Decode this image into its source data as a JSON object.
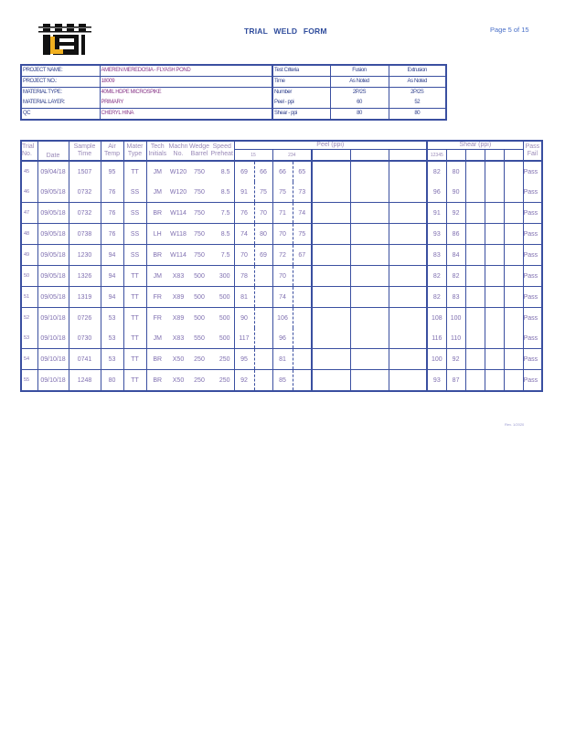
{
  "header": {
    "title": "TRIAL   WELD FORM",
    "page": "Page 5 of 15",
    "logo_text": "LS"
  },
  "project": {
    "name_label": "PROJECT NAME:",
    "name": "AMEREN MEREDOSIA - FLYASH POND",
    "no_label": "PROJECT NO.:",
    "no": "18009",
    "type_label": "MATERIAL TYPE:",
    "type": "40MIL HDPE MICROSPIKE",
    "layer_label": "MATERIAL LAYER:",
    "layer": "PRIMARY",
    "qc_label": "QC",
    "qc": "CHERYL HINA"
  },
  "criteria": {
    "header": [
      "Test Criteria",
      "Fusion",
      "Extrusion"
    ],
    "rows": [
      [
        "Time",
        "As Noted",
        "As Noted"
      ],
      [
        "Number",
        "2P/2S",
        "2P/2S"
      ],
      [
        "Peel - ppi",
        "60",
        "52"
      ],
      [
        "Shear - ppi",
        "80",
        "80"
      ]
    ]
  },
  "columns": {
    "trial": [
      "Trial",
      "No."
    ],
    "date": "Date",
    "sample": [
      "Sample",
      "Time"
    ],
    "air": [
      "Air",
      "Temp"
    ],
    "mater": [
      "Mater",
      "Type"
    ],
    "tech": [
      "Tech",
      "Initials"
    ],
    "machn": [
      "Machn",
      "No."
    ],
    "wedge": [
      "Wedge",
      "Barrel"
    ],
    "speed": [
      "Speed",
      "Preheat"
    ],
    "peel": "Peel (ppi)",
    "peel_sub1": "15",
    "peel_sub2": "234",
    "shear": "Shear (ppi)",
    "shear_sub": "12345",
    "pass": [
      "Pass",
      "Fail"
    ]
  },
  "rows": [
    {
      "no": "45",
      "date": "09/04/18",
      "time": "1507",
      "temp": "95",
      "type": "TT",
      "tech": "JM",
      "mach": "W120",
      "wedge": "750",
      "speed": "8.5",
      "peel": [
        "69",
        "66",
        "66",
        "65"
      ],
      "shear": [
        "82",
        "80"
      ],
      "result": "Pass"
    },
    {
      "no": "46",
      "date": "09/05/18",
      "time": "0732",
      "temp": "76",
      "type": "SS",
      "tech": "JM",
      "mach": "W120",
      "wedge": "750",
      "speed": "8.5",
      "peel": [
        "91",
        "75",
        "75",
        "73"
      ],
      "shear": [
        "96",
        "90"
      ],
      "result": "Pass"
    },
    {
      "no": "47",
      "date": "09/05/18",
      "time": "0732",
      "temp": "76",
      "type": "SS",
      "tech": "BR",
      "mach": "W114",
      "wedge": "750",
      "speed": "7.5",
      "peel": [
        "76",
        "70",
        "71",
        "74"
      ],
      "shear": [
        "91",
        "92"
      ],
      "result": "Pass"
    },
    {
      "no": "48",
      "date": "09/05/18",
      "time": "0738",
      "temp": "76",
      "type": "SS",
      "tech": "LH",
      "mach": "W118",
      "wedge": "750",
      "speed": "8.5",
      "peel": [
        "74",
        "80",
        "70",
        "75"
      ],
      "shear": [
        "93",
        "86"
      ],
      "result": "Pass"
    },
    {
      "no": "49",
      "date": "09/05/18",
      "time": "1230",
      "temp": "94",
      "type": "SS",
      "tech": "BR",
      "mach": "W114",
      "wedge": "750",
      "speed": "7.5",
      "peel": [
        "70",
        "69",
        "72",
        "67"
      ],
      "shear": [
        "83",
        "84"
      ],
      "result": "Pass"
    },
    {
      "no": "50",
      "date": "09/05/18",
      "time": "1326",
      "temp": "94",
      "type": "TT",
      "tech": "JM",
      "mach": "X83",
      "wedge": "500",
      "speed": "300",
      "peel": [
        "78",
        "",
        "70",
        ""
      ],
      "shear": [
        "82",
        "82"
      ],
      "result": "Pass"
    },
    {
      "no": "51",
      "date": "09/05/18",
      "time": "1319",
      "temp": "94",
      "type": "TT",
      "tech": "FR",
      "mach": "X89",
      "wedge": "500",
      "speed": "500",
      "peel": [
        "81",
        "",
        "74",
        ""
      ],
      "shear": [
        "82",
        "83"
      ],
      "result": "Pass"
    },
    {
      "no": "52",
      "date": "09/10/18",
      "time": "0726",
      "temp": "53",
      "type": "TT",
      "tech": "FR",
      "mach": "X89",
      "wedge": "500",
      "speed": "500",
      "peel": [
        "90",
        "",
        "106",
        ""
      ],
      "shear": [
        "108",
        "100"
      ],
      "result": "Pass"
    },
    {
      "no": "53",
      "date": "09/10/18",
      "time": "0730",
      "temp": "53",
      "type": "TT",
      "tech": "JM",
      "mach": "X83",
      "wedge": "550",
      "speed": "500",
      "peel": [
        "117",
        "",
        "96",
        ""
      ],
      "shear": [
        "116",
        "110"
      ],
      "result": "Pass"
    },
    {
      "no": "54",
      "date": "09/10/18",
      "time": "0741",
      "temp": "53",
      "type": "TT",
      "tech": "BR",
      "mach": "X50",
      "wedge": "250",
      "speed": "250",
      "peel": [
        "95",
        "",
        "81",
        ""
      ],
      "shear": [
        "100",
        "92"
      ],
      "result": "Pass"
    },
    {
      "no": "55",
      "date": "09/10/18",
      "time": "1248",
      "temp": "80",
      "type": "TT",
      "tech": "BR",
      "mach": "X50",
      "wedge": "250",
      "speed": "250",
      "peel": [
        "92",
        "",
        "85",
        ""
      ],
      "shear": [
        "93",
        "87"
      ],
      "result": "Pass"
    }
  ],
  "footer": {
    "rev": "Rev. 1/2020"
  },
  "colors": {
    "border": "#3a4fa0",
    "label": "#2f3f8c",
    "value": "#7f6fb0"
  }
}
